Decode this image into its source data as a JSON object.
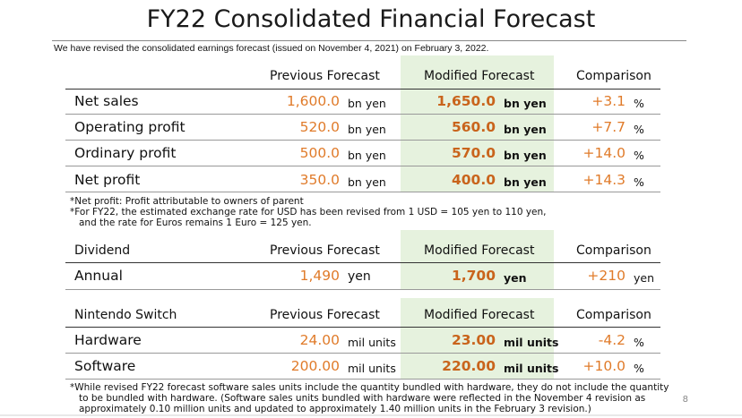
{
  "title": "FY22 Consolidated Financial Forecast",
  "subtitle": "We have revised the consolidated earnings forecast (issued on November 4, 2021) on February 3, 2022.",
  "headers": {
    "prev": "Previous Forecast",
    "mod": "Modified Forecast",
    "cmp": "Comparison"
  },
  "earnings": [
    {
      "label": "Net sales",
      "prev": "1,600.0",
      "prev_unit": "bn yen",
      "mod": "1,650.0",
      "mod_unit": "bn yen",
      "cmp": "+3.1",
      "cmp_unit": "%"
    },
    {
      "label": "Operating profit",
      "prev": "520.0",
      "prev_unit": "bn yen",
      "mod": "560.0",
      "mod_unit": "bn yen",
      "cmp": "+7.7",
      "cmp_unit": "%"
    },
    {
      "label": "Ordinary profit",
      "prev": "500.0",
      "prev_unit": "bn yen",
      "mod": "570.0",
      "mod_unit": "bn yen",
      "cmp": "+14.0",
      "cmp_unit": "%"
    },
    {
      "label": "Net profit",
      "prev": "350.0",
      "prev_unit": "bn yen",
      "mod": "400.0",
      "mod_unit": "bn yen",
      "cmp": "+14.3",
      "cmp_unit": "%"
    }
  ],
  "notes1": [
    "*Net profit: Profit attributable to owners of parent",
    "*For FY22, the estimated exchange rate for USD has been revised from 1 USD = 105 yen to 110 yen,",
    "and the rate for Euros remains 1 Euro = 125 yen."
  ],
  "dividend": {
    "header": "Dividend",
    "row": {
      "label": "Annual",
      "prev": "1,490",
      "prev_unit": "yen",
      "mod": "1,700",
      "mod_unit": "yen",
      "cmp": "+210",
      "cmp_unit": "yen"
    }
  },
  "switch": {
    "header": "Nintendo Switch",
    "rows": [
      {
        "label": "Hardware",
        "prev": "24.00",
        "prev_unit": "mil units",
        "mod": "23.00",
        "mod_unit": "mil units",
        "cmp": "-4.2",
        "cmp_unit": "%"
      },
      {
        "label": "Software",
        "prev": "200.00",
        "prev_unit": "mil units",
        "mod": "220.00",
        "mod_unit": "mil units",
        "cmp": "+10.0",
        "cmp_unit": "%"
      }
    ]
  },
  "notes2": [
    "*While revised FY22 forecast software sales units include the quantity bundled with hardware, they do not include the quantity",
    "to be bundled with hardware. (Software sales units bundled with hardware were reflected in the November 4 revision as",
    "approximately 0.10 million units and updated to approximately 1.40 million units in the February 3 revision.)"
  ],
  "page_number": "8",
  "colors": {
    "highlight": "#e6f2de",
    "value_orange": "#e07b2a",
    "modified_orange": "#c9641c"
  }
}
